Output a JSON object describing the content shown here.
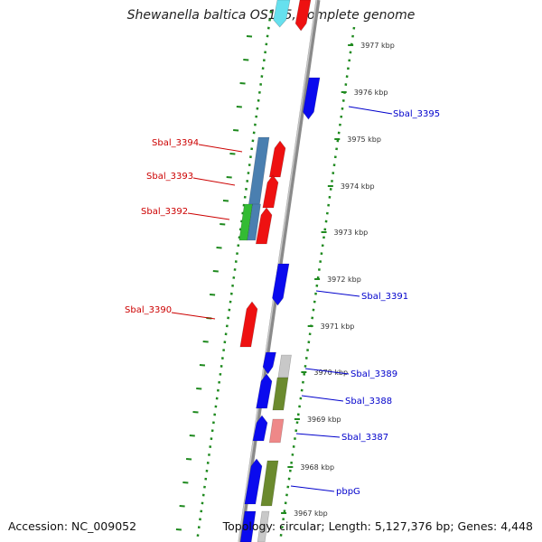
{
  "title": "Shewanella baltica OS155, complete genome",
  "footer": {
    "accession": "Accession: NC_009052",
    "summary": "Topology: circular; Length: 5,127,376 bp; Genes: 4,448"
  },
  "colors": {
    "backbone": "#8a8a8a",
    "gc_dots": "#1f8a1f",
    "left_label": "#cc0000",
    "right_label": "#0000cc",
    "red": "#ee1111",
    "blue": "#0a0aee",
    "steel": "#4a7fb0",
    "green": "#33bb33",
    "olive": "#6b8a2e",
    "pink": "#ee8888",
    "gray": "#c8c8c8",
    "cyan": "#66e0ee"
  },
  "ticks": [
    "3977 kbp",
    "3976 kbp",
    "3975 kbp",
    "3974 kbp",
    "3973 kbp",
    "3972 kbp",
    "3971 kbp",
    "3970 kbp",
    "3969 kbp",
    "3968 kbp",
    "3967 kbp"
  ],
  "left_labels": [
    "Sbal_3394",
    "Sbal_3393",
    "Sbal_3392",
    "Sbal_3390"
  ],
  "right_labels": [
    "Sbal_3395",
    "Sbal_3391",
    "Sbal_3389",
    "Sbal_3388",
    "Sbal_3387",
    "pbpG"
  ]
}
